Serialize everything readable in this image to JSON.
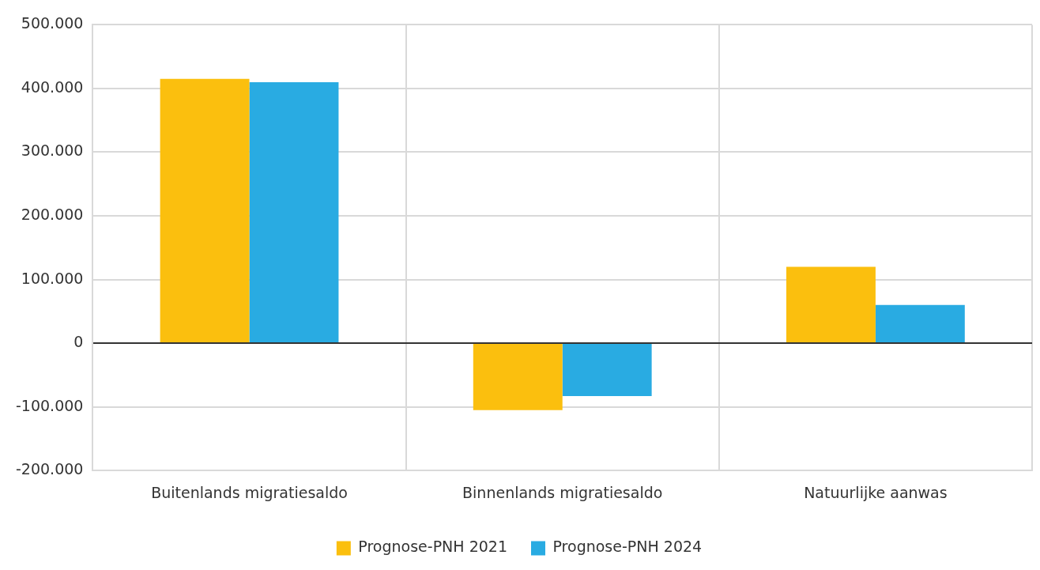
{
  "chart_data": {
    "type": "bar",
    "categories": [
      "Buitenlands migratiesaldo",
      "Binnenlands migratiesaldo",
      "Natuurlijke aanwas"
    ],
    "series": [
      {
        "name": "Prognose-PNH 2021",
        "color": "#fbbf0e",
        "values": [
          415000,
          -105000,
          120000
        ]
      },
      {
        "name": "Prognose-PNH 2024",
        "color": "#29abe2",
        "values": [
          410000,
          -83000,
          60000
        ]
      }
    ],
    "ylim": [
      -200000,
      500000
    ],
    "yticks": [
      {
        "value": -200000,
        "label": "-200.000"
      },
      {
        "value": -100000,
        "label": "-100.000"
      },
      {
        "value": 0,
        "label": "0"
      },
      {
        "value": 100000,
        "label": "100.000"
      },
      {
        "value": 200000,
        "label": "200.000"
      },
      {
        "value": 300000,
        "label": "300.000"
      },
      {
        "value": 400000,
        "label": "400.000"
      },
      {
        "value": 500000,
        "label": "500.000"
      }
    ],
    "grid": true,
    "legend": "bottom"
  }
}
